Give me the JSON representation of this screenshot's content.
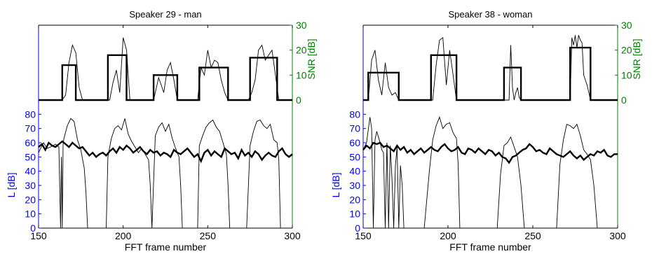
{
  "colors": {
    "left_axis": "#0000ff",
    "right_axis": "#008000",
    "bottom_axis": "#000000",
    "trace": "#000000"
  },
  "chart_data": [
    {
      "type": "line",
      "title": "Speaker 29 - man",
      "xlabel": "FFT frame number",
      "xlim": [
        150,
        300
      ],
      "xticks": [
        "150",
        "200",
        "250",
        "300"
      ],
      "top_panel": {
        "ylabel_right": "SNR [dB]",
        "ylim": [
          0,
          30
        ],
        "yticks": [
          "0",
          "10",
          "20",
          "30"
        ],
        "series": [
          {
            "style": "thick",
            "x": [
              150,
              164,
              164,
              172,
              172,
              191,
              191,
              202,
              202,
              218,
              218,
              232,
              232,
              245,
              245,
              262,
              262,
              275,
              275,
              291,
              291,
              300
            ],
            "values": [
              0,
              0,
              14,
              14,
              0,
              0,
              18,
              18,
              0,
              0,
              10,
              10,
              0,
              0,
              13,
              13,
              0,
              0,
              17,
              17,
              0,
              0
            ]
          },
          {
            "style": "thin",
            "x": [
              150,
              164,
              166,
              168,
              170,
              172,
              174,
              176,
              192,
              194,
              196,
              198,
              200,
              202,
              204,
              218,
              221,
              224,
              226,
              228,
              230,
              232,
              244,
              246,
              248,
              250,
              252,
              254,
              256,
              258,
              260,
              262,
              274,
              276,
              278,
              280,
              282,
              284,
              286,
              288,
              290,
              292,
              300
            ],
            "values": [
              0,
              0,
              2,
              15,
              22,
              19,
              5,
              0,
              0,
              7,
              12,
              3,
              25,
              20,
              0,
              0,
              9,
              3,
              12,
              15,
              8,
              0,
              0,
              13,
              10,
              20,
              13,
              16,
              15,
              8,
              3,
              0,
              0,
              3,
              8,
              20,
              22,
              16,
              18,
              20,
              10,
              0,
              0
            ]
          }
        ]
      },
      "bottom_panel": {
        "ylabel_left": "L [dB]",
        "ylim": [
          0,
          90
        ],
        "yticks": [
          "0",
          "10",
          "20",
          "30",
          "40",
          "50",
          "60",
          "70",
          "80"
        ],
        "series": [
          {
            "style": "thick",
            "x": [
              150,
              152,
              154,
              156,
              158,
              160,
              162,
              164,
              166,
              168,
              170,
              172,
              174,
              176,
              178,
              180,
              182,
              184,
              186,
              188,
              190,
              192,
              194,
              196,
              198,
              200,
              202,
              204,
              206,
              208,
              210,
              212,
              214,
              216,
              218,
              220,
              222,
              224,
              226,
              228,
              230,
              232,
              234,
              236,
              238,
              240,
              242,
              244,
              246,
              248,
              250,
              252,
              254,
              256,
              258,
              260,
              262,
              264,
              266,
              268,
              270,
              272,
              274,
              276,
              278,
              280,
              282,
              284,
              286,
              288,
              290,
              292,
              294,
              296,
              298,
              300
            ],
            "values": [
              57,
              59,
              55,
              60,
              58,
              57,
              59,
              61,
              59,
              57,
              60,
              58,
              56,
              57,
              54,
              51,
              53,
              50,
              52,
              53,
              51,
              54,
              56,
              53,
              57,
              55,
              58,
              56,
              53,
              55,
              57,
              54,
              52,
              55,
              53,
              54,
              51,
              53,
              52,
              50,
              55,
              53,
              52,
              54,
              56,
              53,
              50,
              52,
              47,
              53,
              55,
              51,
              54,
              52,
              50,
              56,
              54,
              52,
              53,
              49,
              55,
              51,
              53,
              50,
              54,
              52,
              48,
              51,
              53,
              51,
              50,
              54,
              56,
              52,
              50,
              52
            ]
          },
          {
            "style": "thin",
            "x": [
              150,
              152,
              153,
              155,
              157,
              160,
              162,
              163,
              163.5,
              164,
              164.5,
              165,
              167,
              169,
              171,
              173,
              175,
              177,
              178,
              179,
              186,
              190,
              191,
              193,
              195,
              197,
              199,
              201,
              203,
              205,
              207,
              209,
              211,
              213,
              215,
              216,
              217,
              219,
              221,
              223,
              225,
              227,
              229,
              231,
              233,
              234,
              235,
              244,
              245,
              247,
              249,
              251,
              253,
              255,
              257,
              259,
              261,
              262,
              263,
              264,
              273,
              275,
              277,
              279,
              281,
              283,
              285,
              287,
              289,
              291,
              292,
              293,
              300
            ],
            "values": [
              53,
              58,
              60,
              56,
              57,
              59,
              57,
              0,
              50,
              0,
              59,
              63,
              72,
              77,
              75,
              62,
              55,
              42,
              25,
              0,
              0,
              0,
              50,
              63,
              70,
              72,
              69,
              77,
              66,
              61,
              57,
              53,
              56,
              52,
              48,
              30,
              0,
              65,
              71,
              74,
              68,
              73,
              63,
              56,
              50,
              30,
              0,
              0,
              58,
              65,
              71,
              74,
              76,
              71,
              68,
              60,
              52,
              30,
              0,
              0,
              0,
              58,
              68,
              75,
              76,
              72,
              70,
              73,
              62,
              60,
              48,
              0,
              0
            ]
          }
        ]
      }
    },
    {
      "type": "line",
      "title": "Speaker 38 - woman",
      "xlabel": "FFT frame number",
      "xlim": [
        150,
        300
      ],
      "xticks": [
        "150",
        "200",
        "250",
        "300"
      ],
      "top_panel": {
        "ylabel_right": "SNR [dB]",
        "ylim": [
          0,
          30
        ],
        "yticks": [
          "0",
          "10",
          "20",
          "30"
        ],
        "series": [
          {
            "style": "thick",
            "x": [
              150,
              153,
              153,
              171,
              171,
              190,
              190,
              205,
              205,
              233,
              233,
              243,
              243,
              272,
              272,
              284,
              284,
              300
            ],
            "values": [
              0,
              0,
              11,
              11,
              0,
              0,
              18,
              18,
              0,
              0,
              13,
              13,
              0,
              0,
              21,
              21,
              0,
              0
            ]
          },
          {
            "style": "thin",
            "x": [
              150,
              153,
              155,
              157,
              159,
              161,
              163,
              165,
              167,
              169,
              171,
              191,
              193,
              195,
              197,
              199,
              201,
              203,
              205,
              236,
              237,
              238,
              239,
              240,
              241,
              242,
              243,
              272,
              273,
              274,
              275,
              276,
              277,
              278,
              279,
              280,
              281,
              282,
              283,
              284,
              300
            ],
            "values": [
              0,
              0,
              16,
              20,
              8,
              2,
              15,
              5,
              2,
              3,
              0,
              0,
              14,
              24,
              25,
              6,
              20,
              10,
              0,
              0,
              22,
              5,
              0,
              3,
              5,
              1,
              0,
              0,
              25,
              22,
              26,
              21,
              26,
              24,
              23,
              10,
              8,
              6,
              3,
              0,
              0
            ]
          }
        ]
      },
      "bottom_panel": {
        "ylabel_left": "L [dB]",
        "ylim": [
          0,
          90
        ],
        "yticks": [
          "0",
          "10",
          "20",
          "30",
          "40",
          "50",
          "60",
          "70",
          "80"
        ],
        "series": [
          {
            "style": "thick",
            "x": [
              150,
              152,
              154,
              156,
              158,
              160,
              162,
              164,
              166,
              168,
              170,
              172,
              174,
              176,
              178,
              180,
              182,
              184,
              186,
              188,
              190,
              192,
              194,
              196,
              198,
              200,
              202,
              204,
              206,
              208,
              210,
              212,
              214,
              216,
              218,
              220,
              222,
              224,
              226,
              228,
              230,
              232,
              234,
              236,
              238,
              240,
              242,
              244,
              246,
              248,
              250,
              252,
              254,
              256,
              258,
              260,
              262,
              264,
              266,
              268,
              270,
              272,
              274,
              276,
              278,
              280,
              282,
              284,
              286,
              288,
              290,
              292,
              294,
              296,
              298,
              300
            ],
            "values": [
              55,
              58,
              56,
              60,
              59,
              60,
              57,
              58,
              56,
              54,
              58,
              55,
              57,
              53,
              55,
              52,
              54,
              56,
              53,
              55,
              57,
              55,
              54,
              57,
              59,
              56,
              54,
              55,
              57,
              53,
              52,
              56,
              55,
              53,
              56,
              54,
              52,
              55,
              54,
              51,
              53,
              50,
              49,
              46,
              50,
              51,
              53,
              55,
              56,
              59,
              57,
              54,
              55,
              53,
              52,
              56,
              54,
              52,
              51,
              50,
              52,
              54,
              51,
              49,
              51,
              48,
              50,
              52,
              51,
              54,
              53,
              55,
              51,
              50,
              52,
              52
            ]
          },
          {
            "style": "thin",
            "x": [
              150,
              152,
              154,
              155,
              156,
              157,
              158,
              159,
              160,
              161,
              162,
              163,
              164,
              165,
              166,
              167,
              168,
              169,
              170,
              171,
              172,
              173,
              174,
              175,
              186,
              189,
              191,
              193,
              195,
              197,
              199,
              201,
              203,
              205,
              206,
              207,
              229,
              231,
              233,
              235,
              237,
              239,
              241,
              243,
              245,
              264,
              266,
              268,
              270,
              272,
              274,
              276,
              278,
              280,
              282,
              284,
              286,
              288,
              300
            ],
            "values": [
              55,
              60,
              78,
              70,
              0,
              62,
              68,
              64,
              60,
              55,
              53,
              0,
              60,
              0,
              58,
              35,
              0,
              44,
              57,
              0,
              44,
              30,
              0,
              0,
              0,
              40,
              62,
              72,
              78,
              70,
              73,
              74,
              67,
              63,
              45,
              0,
              0,
              38,
              58,
              60,
              64,
              57,
              50,
              30,
              0,
              0,
              45,
              62,
              73,
              72,
              70,
              73,
              65,
              55,
              52,
              48,
              30,
              0,
              0
            ]
          }
        ]
      }
    }
  ]
}
